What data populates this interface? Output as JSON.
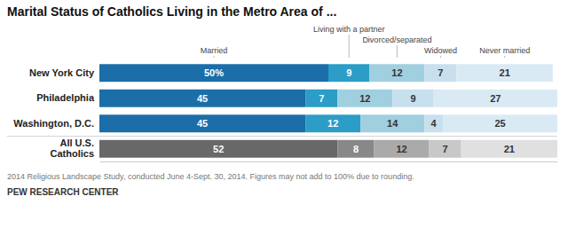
{
  "chart_data": {
    "type": "bar",
    "orientation": "horizontal",
    "stacked": true,
    "title": "Marital Status of Catholics Living in the Metro Area of ...",
    "categories": [
      "New York City",
      "Philadelphia",
      "Washington, D.C.",
      "All U.S.\nCatholics"
    ],
    "series": [
      {
        "name": "Married",
        "colors": [
          "#1b6ea8",
          "#1b6ea8",
          "#1b6ea8",
          "#686868"
        ],
        "values": [
          50,
          45,
          45,
          52
        ],
        "value_labels": [
          "50%",
          "45",
          "45",
          "52"
        ]
      },
      {
        "name": "Living with a partner",
        "colors": [
          "#2b9dc6",
          "#2b9dc6",
          "#2b9dc6",
          "#888888"
        ],
        "values": [
          9,
          7,
          12,
          8
        ]
      },
      {
        "name": "Divorced/separated",
        "colors": [
          "#a0cfe0",
          "#a0cfe0",
          "#a0cfe0",
          "#aaaaaa"
        ],
        "values": [
          12,
          12,
          14,
          12
        ]
      },
      {
        "name": "Widowed",
        "colors": [
          "#c8e0ee",
          "#c8e0ee",
          "#c8e0ee",
          "#c8c8c8"
        ],
        "values": [
          7,
          9,
          4,
          7
        ]
      },
      {
        "name": "Never married",
        "colors": [
          "#daeaf4",
          "#daeaf4",
          "#daeaf4",
          "#e0e0e0"
        ],
        "values": [
          21,
          27,
          25,
          21
        ]
      }
    ],
    "xlim": [
      0,
      100
    ],
    "data_labels": true,
    "tick_labels": "y",
    "grid": false,
    "legend": "top",
    "footnote": "2014 Religious Landscape Study, conducted June 4-Sept. 30, 2014. Figures may not add to 100% due to rounding.",
    "source": "PEW RESEARCH CENTER"
  }
}
